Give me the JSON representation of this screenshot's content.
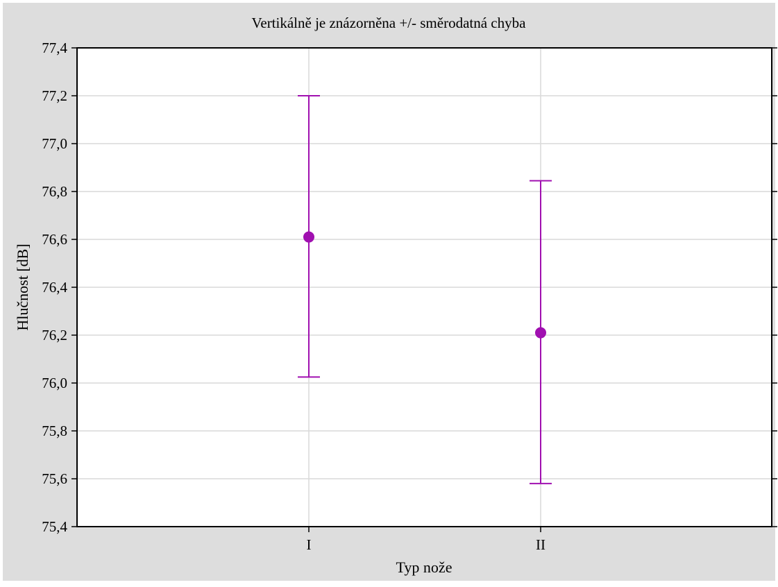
{
  "colors": {
    "frame_background": "#dddddd",
    "plot_background": "#ffffff",
    "grid": "#d9d9d9",
    "axis": "#000000",
    "series": "#a010b0"
  },
  "chart_data": {
    "type": "scatter",
    "title": "Vertikálně je znázorněna +/- směrodatná chyba",
    "xlabel": "Typ nože",
    "ylabel": "Hlučnost [dB]",
    "categories": [
      "I",
      "II"
    ],
    "series": [
      {
        "values": [
          76.61,
          76.21
        ],
        "error_low": [
          76.025,
          75.58
        ],
        "error_high": [
          77.2,
          76.845
        ]
      }
    ],
    "ylim": [
      75.4,
      77.4
    ],
    "yticks": [
      75.4,
      75.6,
      75.8,
      76.0,
      76.2,
      76.4,
      76.6,
      76.8,
      77.0,
      77.2,
      77.4
    ],
    "ytick_labels": [
      "75,4",
      "75,6",
      "75,8",
      "76,0",
      "76,2",
      "76,4",
      "76,6",
      "76,8",
      "77,0",
      "77,2",
      "77,4"
    ],
    "grid": true,
    "legend": "none"
  }
}
